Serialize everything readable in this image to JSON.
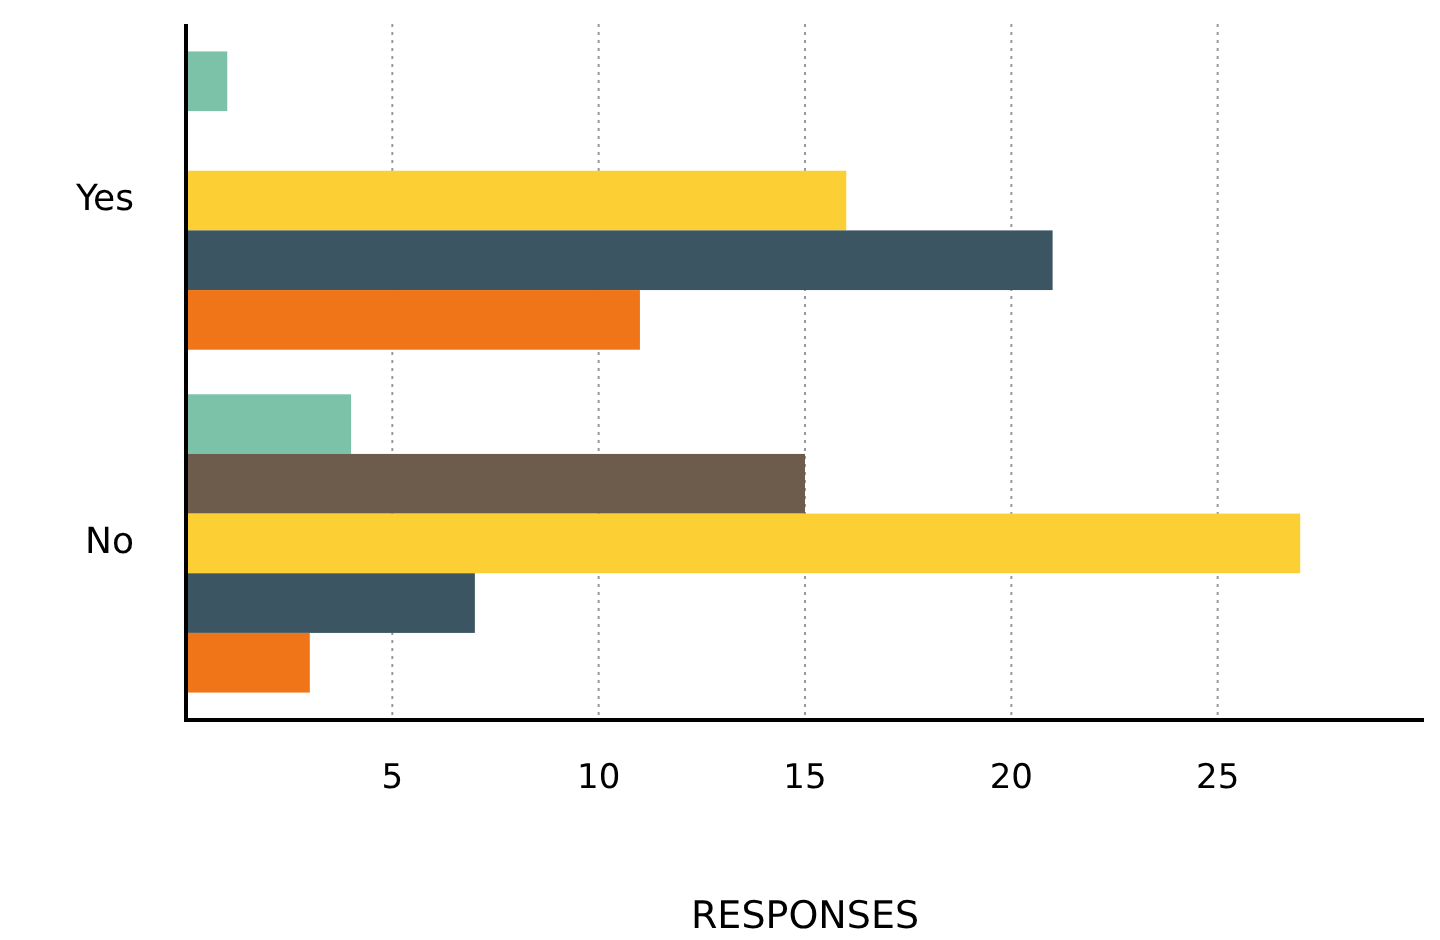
{
  "chart_data": {
    "type": "bar",
    "orientation": "horizontal",
    "xlabel": "RESPONSES",
    "categories": [
      "Yes",
      "No"
    ],
    "series": [
      {
        "color": "#7bc2a9",
        "values": [
          1,
          4
        ]
      },
      {
        "color": "#6d5b4c",
        "values": [
          null,
          15
        ]
      },
      {
        "color": "#fcd034",
        "values": [
          16,
          27
        ]
      },
      {
        "color": "#3b5662",
        "values": [
          21,
          7
        ]
      },
      {
        "color": "#f07518",
        "values": [
          11,
          3
        ]
      }
    ],
    "xlim": [
      0,
      30
    ],
    "xticks": [
      5,
      10,
      15,
      20,
      25
    ],
    "grid": "x"
  }
}
